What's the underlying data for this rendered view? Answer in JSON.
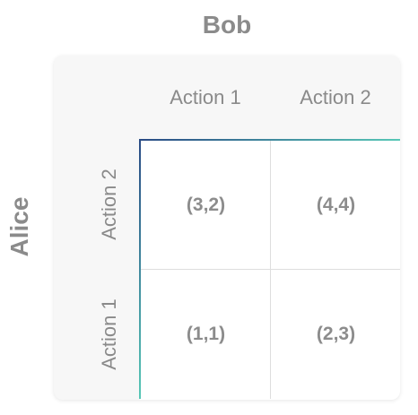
{
  "players": {
    "column_player": "Bob",
    "row_player": "Alice"
  },
  "column_actions": [
    "Action 1",
    "Action 2"
  ],
  "row_actions": [
    "Action 2",
    "Action 1"
  ],
  "payoffs": [
    [
      "(3,2)",
      "(4,4)"
    ],
    [
      "(1,1)",
      "(2,3)"
    ]
  ],
  "colors": {
    "frame_gradient_start": "#2a4b85",
    "frame_gradient_end": "#57c7b6",
    "text": "#8b8b8b",
    "card_background": "#f7f7f7"
  }
}
